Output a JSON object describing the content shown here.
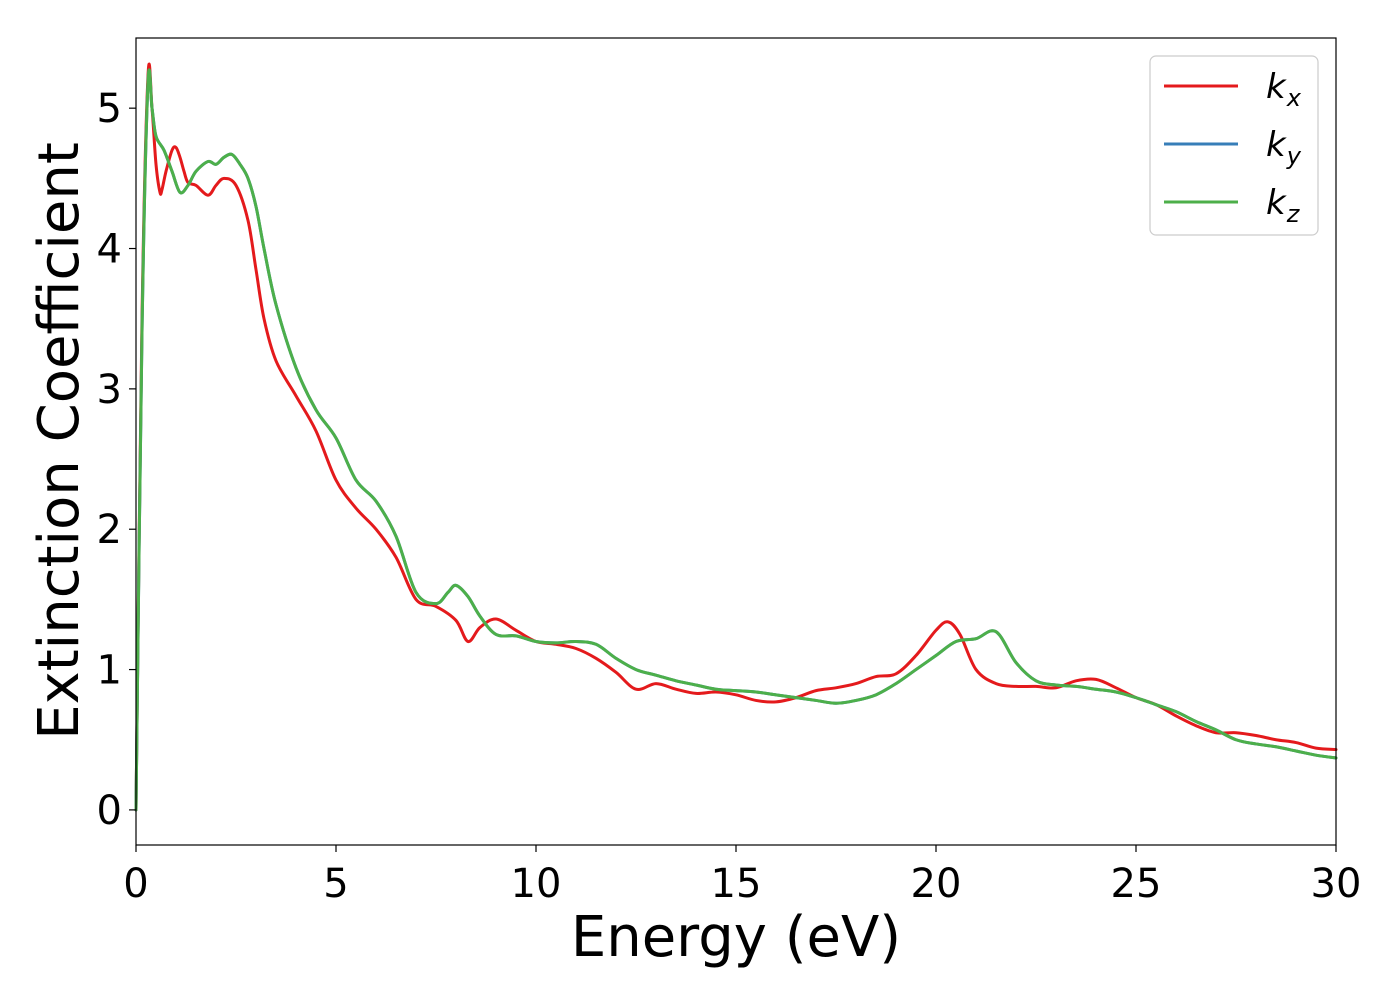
{
  "chart_data": {
    "type": "line",
    "title": "",
    "xlabel": "Energy (eV)",
    "ylabel": "Extinction Coefficient",
    "xlim": [
      0,
      30
    ],
    "ylim": [
      -0.25,
      5.5
    ],
    "xticks": [
      0,
      5,
      10,
      15,
      20,
      25,
      30
    ],
    "yticks": [
      0,
      1,
      2,
      3,
      4,
      5
    ],
    "xtick_labels": [
      "0",
      "5",
      "10",
      "15",
      "20",
      "25",
      "30"
    ],
    "ytick_labels": [
      "0",
      "1",
      "2",
      "3",
      "4",
      "5"
    ],
    "grid": false,
    "legend_position": "top-right",
    "series": [
      {
        "name": "k_x",
        "legend_base": "k",
        "legend_sub": "x",
        "color": "#e41a1c",
        "x": [
          0,
          0.15,
          0.3,
          0.4,
          0.5,
          0.6,
          0.65,
          0.75,
          0.9,
          1.0,
          1.1,
          1.2,
          1.3,
          1.5,
          1.8,
          2.0,
          2.2,
          2.5,
          2.8,
          3.0,
          3.2,
          3.5,
          4.0,
          4.5,
          5.0,
          5.5,
          6.0,
          6.5,
          7.0,
          7.5,
          8.0,
          8.3,
          8.6,
          9.0,
          9.5,
          10.0,
          10.5,
          11.0,
          11.5,
          12.0,
          12.5,
          13.0,
          13.5,
          14.0,
          14.5,
          15.0,
          15.5,
          16.0,
          16.5,
          17.0,
          17.5,
          18.0,
          18.5,
          19.0,
          19.5,
          20.0,
          20.3,
          20.6,
          21.0,
          21.5,
          22.0,
          22.5,
          23.0,
          23.5,
          24.0,
          24.5,
          25.0,
          25.5,
          26.0,
          26.5,
          27.0,
          27.5,
          28.0,
          28.5,
          29.0,
          29.5,
          30.0
        ],
        "y": [
          0.0,
          3.5,
          5.23,
          5.0,
          4.6,
          4.4,
          4.42,
          4.55,
          4.7,
          4.72,
          4.65,
          4.55,
          4.47,
          4.45,
          4.38,
          4.45,
          4.5,
          4.45,
          4.2,
          3.85,
          3.5,
          3.2,
          2.95,
          2.7,
          2.35,
          2.15,
          2.0,
          1.8,
          1.5,
          1.45,
          1.35,
          1.2,
          1.3,
          1.36,
          1.28,
          1.2,
          1.18,
          1.15,
          1.08,
          0.98,
          0.86,
          0.9,
          0.86,
          0.83,
          0.84,
          0.82,
          0.78,
          0.77,
          0.8,
          0.85,
          0.87,
          0.9,
          0.95,
          0.97,
          1.1,
          1.28,
          1.34,
          1.25,
          1.0,
          0.9,
          0.88,
          0.88,
          0.87,
          0.92,
          0.93,
          0.87,
          0.8,
          0.75,
          0.67,
          0.6,
          0.55,
          0.55,
          0.53,
          0.5,
          0.48,
          0.44,
          0.43
        ]
      },
      {
        "name": "k_y",
        "legend_base": "k",
        "legend_sub": "y",
        "color": "#377eb8",
        "x": [
          0,
          0.15,
          0.3,
          0.4,
          0.5,
          0.7,
          0.9,
          1.1,
          1.3,
          1.5,
          1.8,
          2.0,
          2.2,
          2.4,
          2.6,
          2.8,
          3.0,
          3.2,
          3.5,
          4.0,
          4.5,
          5.0,
          5.5,
          6.0,
          6.5,
          7.0,
          7.5,
          7.8,
          8.0,
          8.3,
          8.6,
          9.0,
          9.5,
          10.0,
          10.5,
          11.0,
          11.5,
          12.0,
          12.5,
          13.0,
          13.5,
          14.0,
          14.5,
          15.0,
          15.5,
          16.0,
          16.5,
          17.0,
          17.5,
          18.0,
          18.5,
          19.0,
          19.5,
          20.0,
          20.5,
          21.0,
          21.5,
          22.0,
          22.5,
          23.0,
          23.5,
          24.0,
          24.5,
          25.0,
          25.5,
          26.0,
          26.5,
          27.0,
          27.5,
          28.0,
          28.5,
          29.0,
          29.5,
          30.0
        ],
        "y": [
          0.0,
          3.4,
          5.18,
          5.0,
          4.8,
          4.7,
          4.55,
          4.4,
          4.45,
          4.55,
          4.62,
          4.6,
          4.65,
          4.67,
          4.6,
          4.5,
          4.3,
          4.0,
          3.6,
          3.15,
          2.85,
          2.65,
          2.35,
          2.2,
          1.95,
          1.55,
          1.47,
          1.55,
          1.6,
          1.52,
          1.38,
          1.25,
          1.24,
          1.2,
          1.19,
          1.2,
          1.18,
          1.08,
          1.0,
          0.96,
          0.92,
          0.89,
          0.86,
          0.85,
          0.84,
          0.82,
          0.8,
          0.78,
          0.76,
          0.78,
          0.82,
          0.9,
          1.0,
          1.1,
          1.2,
          1.22,
          1.27,
          1.05,
          0.92,
          0.89,
          0.88,
          0.86,
          0.84,
          0.8,
          0.75,
          0.7,
          0.63,
          0.57,
          0.5,
          0.47,
          0.45,
          0.42,
          0.39,
          0.37
        ]
      },
      {
        "name": "k_z",
        "legend_base": "k",
        "legend_sub": "z",
        "color": "#4daf4a",
        "x": [
          0,
          0.15,
          0.3,
          0.4,
          0.5,
          0.7,
          0.9,
          1.1,
          1.3,
          1.5,
          1.8,
          2.0,
          2.2,
          2.4,
          2.6,
          2.8,
          3.0,
          3.2,
          3.5,
          4.0,
          4.5,
          5.0,
          5.5,
          6.0,
          6.5,
          7.0,
          7.5,
          7.8,
          8.0,
          8.3,
          8.6,
          9.0,
          9.5,
          10.0,
          10.5,
          11.0,
          11.5,
          12.0,
          12.5,
          13.0,
          13.5,
          14.0,
          14.5,
          15.0,
          15.5,
          16.0,
          16.5,
          17.0,
          17.5,
          18.0,
          18.5,
          19.0,
          19.5,
          20.0,
          20.5,
          21.0,
          21.5,
          22.0,
          22.5,
          23.0,
          23.5,
          24.0,
          24.5,
          25.0,
          25.5,
          26.0,
          26.5,
          27.0,
          27.5,
          28.0,
          28.5,
          29.0,
          29.5,
          30.0
        ],
        "y": [
          0.0,
          3.4,
          5.18,
          5.0,
          4.8,
          4.7,
          4.55,
          4.4,
          4.45,
          4.55,
          4.62,
          4.6,
          4.65,
          4.67,
          4.6,
          4.5,
          4.3,
          4.0,
          3.6,
          3.15,
          2.85,
          2.65,
          2.35,
          2.2,
          1.95,
          1.55,
          1.47,
          1.55,
          1.6,
          1.52,
          1.38,
          1.25,
          1.24,
          1.2,
          1.19,
          1.2,
          1.18,
          1.08,
          1.0,
          0.96,
          0.92,
          0.89,
          0.86,
          0.85,
          0.84,
          0.82,
          0.8,
          0.78,
          0.76,
          0.78,
          0.82,
          0.9,
          1.0,
          1.1,
          1.2,
          1.22,
          1.27,
          1.05,
          0.92,
          0.89,
          0.88,
          0.86,
          0.84,
          0.8,
          0.75,
          0.7,
          0.63,
          0.57,
          0.5,
          0.47,
          0.45,
          0.42,
          0.39,
          0.37
        ]
      }
    ]
  }
}
